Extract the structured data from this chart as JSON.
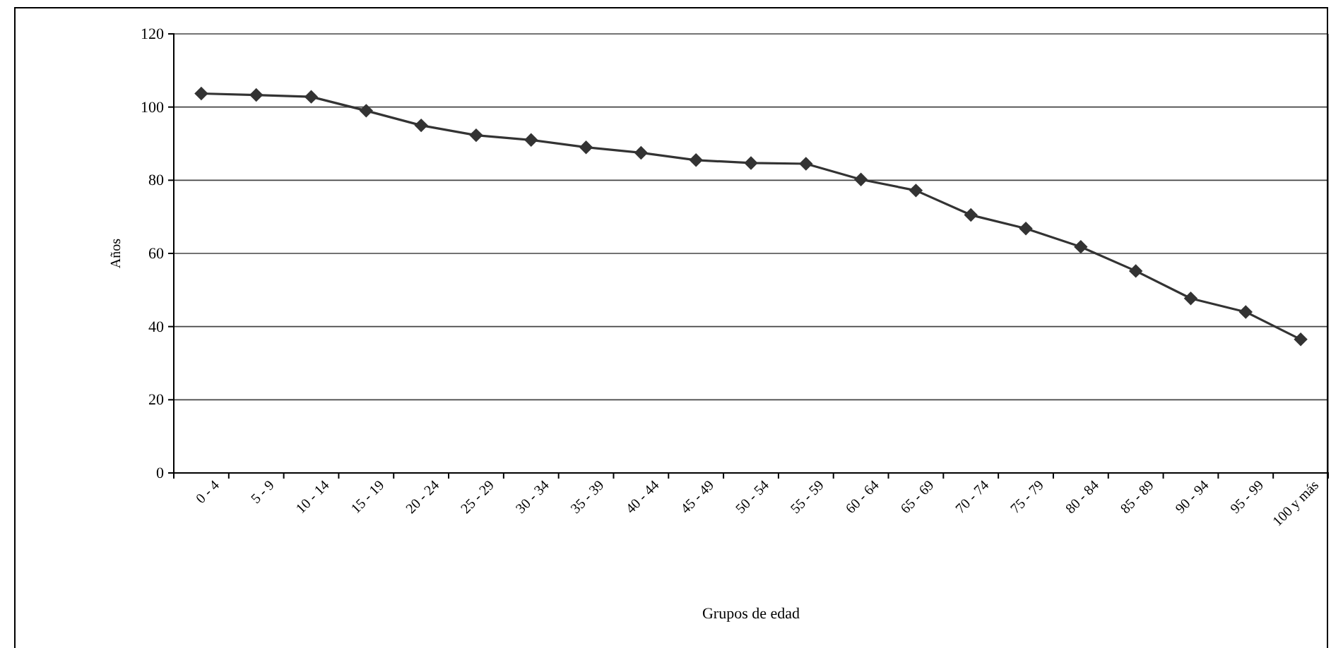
{
  "chart_data": {
    "type": "line",
    "xlabel": "Grupos de edad",
    "ylabel": "Años",
    "categories": [
      "0 - 4",
      "5 - 9",
      "10 - 14",
      "15 - 19",
      "20 - 24",
      "25 - 29",
      "30 - 34",
      "35 - 39",
      "40 - 44",
      "45 - 49",
      "50 - 54",
      "55 - 59",
      "60 - 64",
      "65 - 69",
      "70 - 74",
      "75 - 79",
      "80 - 84",
      "85 - 89",
      "90 - 94",
      "95 - 99",
      "100 y más"
    ],
    "series": [
      {
        "color": "#333333",
        "values": [
          103.7,
          103.3,
          102.8,
          99,
          95,
          92.3,
          91,
          89,
          87.5,
          85.5,
          84.7,
          84.5,
          80.2,
          77.2,
          70.5,
          66.8,
          61.8,
          55.2,
          47.7,
          44,
          36.5
        ]
      }
    ],
    "ylim": [
      0,
      120
    ],
    "yticks": [
      0,
      20,
      40,
      60,
      80,
      100,
      120
    ],
    "grid": "y",
    "marker": "diamond",
    "line_style": "solid",
    "legend": false
  }
}
